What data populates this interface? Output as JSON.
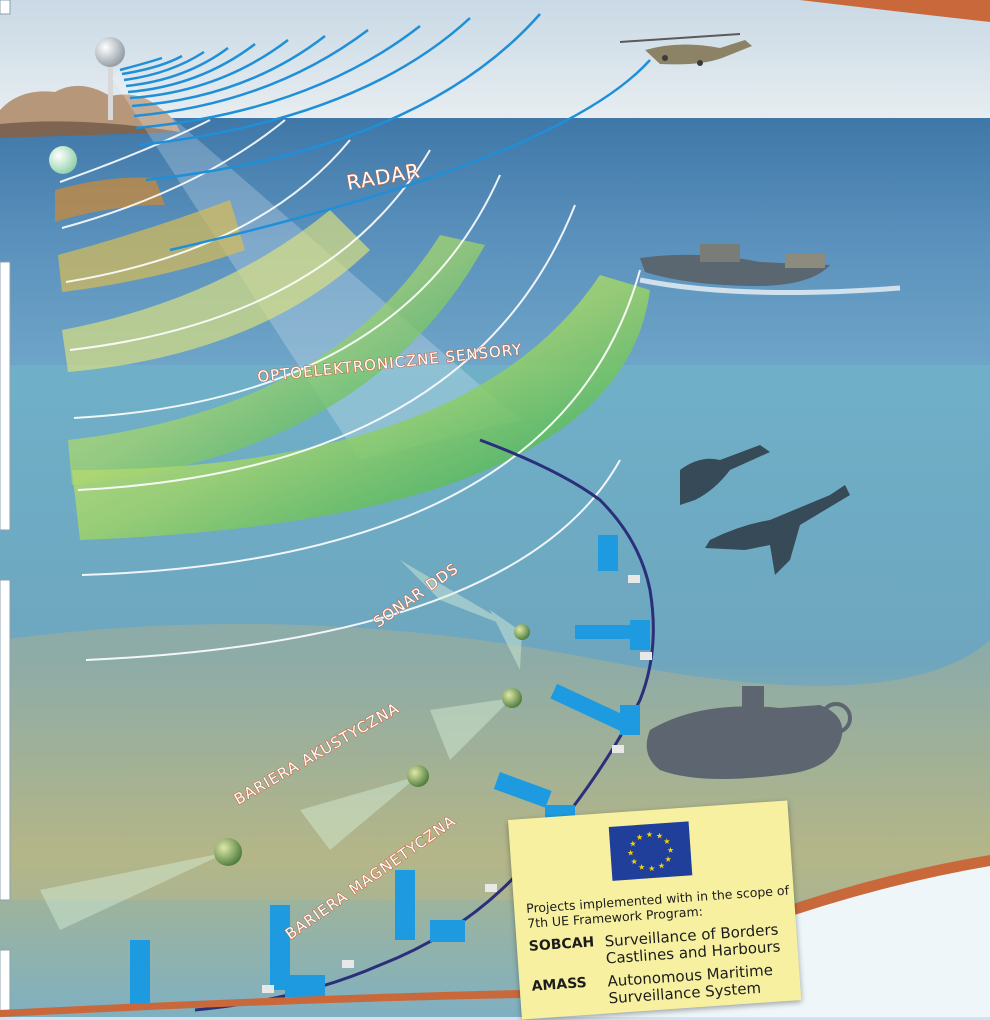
{
  "labels": {
    "radar": "RADAR",
    "opto": "OPTOELEKTRONICZNE SENSORY",
    "sonar": "SONAR DDS",
    "acoustic": "BARIERA AKUSTYCZNA",
    "magnetic": "BARIERA MAGNETYCZNA"
  },
  "eu_note": {
    "intro": "Projects implemented with in the scope of 7th UE Framework Program:",
    "projects": [
      {
        "code": "SOBCAH",
        "desc": "Surveillance of Borders Castlines and Harbours"
      },
      {
        "code": "AMASS",
        "desc": "Autonomous Maritime Surveillance System"
      }
    ]
  },
  "colors": {
    "sky": "#dbe6ee",
    "sea_surface": "#4f86b3",
    "underwater": "#7fb3c9",
    "radar_wave": "#1f8fd8",
    "label_outline": "#c8613a",
    "frame_orange": "#c9693b",
    "eu_blue": "#1f3f9a",
    "eu_star": "#f5d400",
    "note_yellow": "#f6f0a0"
  },
  "icons": [
    "radar-sphere-icon",
    "optical-sphere-icon",
    "helicopter-icon",
    "boat-icon",
    "diver-icon",
    "submarine-icon",
    "eu-flag-icon"
  ]
}
